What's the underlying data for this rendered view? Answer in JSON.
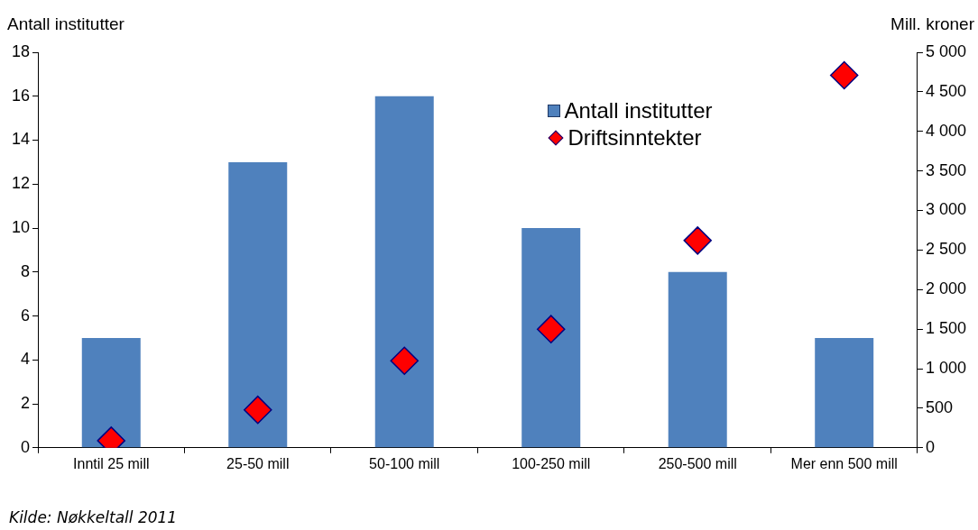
{
  "chart_data": {
    "type": "bar",
    "ylabel": "Antall institutter",
    "y2label": "Mill. kroner",
    "categories": [
      "Inntil 25 mill",
      "25-50 mill",
      "50-100 mill",
      "100-250 mill",
      "250-500 mill",
      "Mer enn 500 mill"
    ],
    "series": [
      {
        "name": "Antall institutter",
        "color": "#4f81bd",
        "values": [
          5,
          13,
          16,
          10,
          8,
          5
        ]
      },
      {
        "name": "Driftsinntekter",
        "type": "scatter",
        "axis": "y2",
        "color": "#ff0000",
        "values": [
          90,
          480,
          1100,
          1500,
          2620,
          4710
        ]
      }
    ],
    "ylim": [
      0,
      18
    ],
    "yticks": [
      0,
      2,
      4,
      6,
      8,
      10,
      12,
      14,
      16,
      18
    ],
    "y2lim": [
      0,
      5000
    ],
    "y2ticks": [
      {
        "value": 0,
        "label": "0"
      },
      {
        "value": 500,
        "label": "500"
      },
      {
        "value": 1000,
        "label": "1 000"
      },
      {
        "value": 1500,
        "label": "1 500"
      },
      {
        "value": 2000,
        "label": "2 000"
      },
      {
        "value": 2500,
        "label": "2 500"
      },
      {
        "value": 3000,
        "label": "3 000"
      },
      {
        "value": 3500,
        "label": "3 500"
      },
      {
        "value": 4000,
        "label": "4 000"
      },
      {
        "value": 4500,
        "label": "4 500"
      },
      {
        "value": 5000,
        "label": "5 000"
      }
    ],
    "grid": false,
    "legend": "top right",
    "marker": "diamond",
    "annotations": [
      "Kilde: Nøkkeltall 2011"
    ]
  }
}
